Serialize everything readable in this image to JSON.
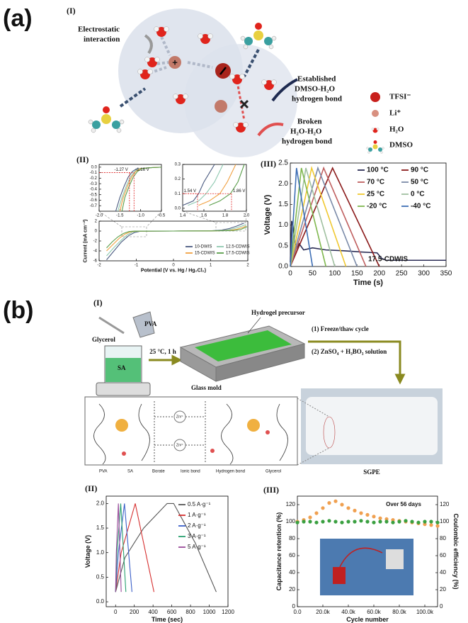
{
  "figure": {
    "panel_a": {
      "label": "(a)",
      "sub_I": "(I)",
      "sub_II": "(II)",
      "sub_III": "(III)",
      "electrostatic": [
        "Electrostatic",
        "interaction"
      ],
      "established": [
        "Established",
        "DMSO-H₂O",
        "hydrogen bond"
      ],
      "broken": [
        "Broken",
        "H₂O-H₂O",
        "hydrogen bond"
      ],
      "legend": [
        "TFSI⁻",
        "Li⁺",
        "H₂O",
        "DMSO"
      ]
    },
    "panel_b": {
      "label": "(b)",
      "sub_I": "(I)",
      "sub_II": "(II)",
      "sub_III": "(III)",
      "glycerol": "Glycerol",
      "pva": "PVA",
      "sa": "SA",
      "condition": "25 °C, 1 h",
      "precursor": "Hydrogel precursor",
      "mold": "Glass mold",
      "steps": [
        "(1) Freeze/thaw cycle",
        "(2) ZnSO₄ + H₃BO₃ solution"
      ],
      "sgpe": "SGPE",
      "zn": [
        "Zn²⁺",
        "Zn²⁺"
      ],
      "scheme_legend": [
        "PVA",
        "SA",
        "Borate",
        "Ionic bond",
        "Hydrogen bond",
        "Glycerol"
      ]
    }
  },
  "chart_data": [
    {
      "type": "line",
      "xlim": [
        -2,
        2
      ],
      "ylim": [
        -6,
        2
      ],
      "xticks": [
        -2,
        -1,
        0,
        1,
        2
      ],
      "yticks": [
        -6,
        -4,
        -2,
        0,
        2
      ],
      "x_label": "Potential (V vs. Hg / Hg₂Cl₂)",
      "y_label": "Current (mA cm⁻²)",
      "series": [
        {
          "name": "10-DWIS",
          "color": "#4a5a80",
          "x": [
            -1.8,
            -1.6,
            -1.4,
            -1.2,
            -1.05,
            -0.9,
            0,
            1.0,
            1.3,
            1.5,
            1.7,
            1.9
          ],
          "values": [
            -5.8,
            -4.0,
            -2.2,
            -0.9,
            -0.3,
            -0.05,
            0,
            0.05,
            0.2,
            0.5,
            1.0,
            1.6
          ]
        },
        {
          "name": "12.5-CDWIS",
          "color": "#8ec9b0",
          "x": [
            -1.8,
            -1.6,
            -1.4,
            -1.25,
            -1.1,
            -0.95,
            0,
            1.0,
            1.4,
            1.6,
            1.8,
            1.95
          ],
          "values": [
            -5.0,
            -3.3,
            -1.8,
            -0.8,
            -0.2,
            -0.03,
            0,
            0.04,
            0.15,
            0.45,
            0.9,
            1.3
          ]
        },
        {
          "name": "15-CDWIS",
          "color": "#f0a040",
          "x": [
            -1.8,
            -1.6,
            -1.45,
            -1.3,
            -1.15,
            -1.0,
            0,
            1.0,
            1.5,
            1.7,
            1.85,
            1.95
          ],
          "values": [
            -4.0,
            -2.5,
            -1.4,
            -0.6,
            -0.15,
            -0.02,
            0,
            0.03,
            0.12,
            0.35,
            0.7,
            1.0
          ]
        },
        {
          "name": "17.5-CDWIS",
          "color": "#5a9e4a",
          "x": [
            -1.8,
            -1.65,
            -1.5,
            -1.35,
            -1.2,
            -1.05,
            0,
            1.0,
            1.6,
            1.8,
            1.9,
            1.98
          ],
          "values": [
            -3.4,
            -2.2,
            -1.2,
            -0.5,
            -0.1,
            -0.01,
            0,
            0.02,
            0.1,
            0.3,
            0.6,
            0.9
          ]
        }
      ],
      "legend": true
    },
    {
      "type": "line",
      "xlim": [
        -2,
        -0.5
      ],
      "ylim": [
        -0.8,
        0.05
      ],
      "xticks": [
        {
          "value": -2,
          "label": "-2.0"
        },
        -1.5,
        {
          "value": -1,
          "label": "-1.0"
        },
        -0.5
      ],
      "yticks": [
        {
          "value": 0,
          "label": "0.0"
        },
        -0.1,
        -0.2,
        -0.3,
        -0.4,
        -0.5,
        -0.6,
        -0.7
      ],
      "series": [
        {
          "color": "#4a5a80",
          "x": [
            -1.6,
            -1.5,
            -1.4,
            -1.3,
            -1.2,
            -1.1,
            -0.8,
            -0.5
          ],
          "values": [
            -0.8,
            -0.55,
            -0.35,
            -0.18,
            -0.08,
            -0.03,
            -0.01,
            0
          ]
        },
        {
          "color": "#8ec9b0",
          "x": [
            -1.55,
            -1.45,
            -1.35,
            -1.25,
            -1.15,
            -1.05,
            -0.8,
            -0.5
          ],
          "values": [
            -0.8,
            -0.55,
            -0.35,
            -0.18,
            -0.08,
            -0.03,
            -0.01,
            0
          ]
        },
        {
          "color": "#f0a040",
          "x": [
            -1.5,
            -1.42,
            -1.32,
            -1.22,
            -1.12,
            -1.02,
            -0.8,
            -0.5
          ],
          "values": [
            -0.8,
            -0.55,
            -0.35,
            -0.18,
            -0.08,
            -0.03,
            -0.01,
            0
          ]
        },
        {
          "color": "#5a9e4a",
          "x": [
            -1.45,
            -1.38,
            -1.28,
            -1.18,
            -1.08,
            -0.98,
            -0.8,
            -0.5
          ],
          "values": [
            -0.8,
            -0.55,
            -0.35,
            -0.18,
            -0.08,
            -0.03,
            -0.01,
            0
          ]
        }
      ],
      "annotations": [
        {
          "text": "-1.27 V",
          "x": -1.27,
          "y": -0.1
        },
        {
          "text": "-1.16 V",
          "x": -1.16,
          "y": -0.1
        }
      ]
    },
    {
      "type": "line",
      "xlim": [
        1.4,
        2
      ],
      "ylim": [
        -0.02,
        0.3
      ],
      "xticks": [
        1.4,
        1.6,
        1.8,
        {
          "value": 2,
          "label": "2.0"
        }
      ],
      "yticks": [
        {
          "value": 0,
          "label": "0.0"
        },
        0.1,
        0.2,
        0.3
      ],
      "series": [
        {
          "color": "#4a5a80",
          "x": [
            1.4,
            1.5,
            1.55,
            1.6,
            1.7
          ],
          "values": [
            0.02,
            0.05,
            0.1,
            0.18,
            0.3
          ]
        },
        {
          "color": "#8ec9b0",
          "x": [
            1.45,
            1.55,
            1.62,
            1.7,
            1.78
          ],
          "values": [
            0.02,
            0.05,
            0.1,
            0.18,
            0.3
          ]
        },
        {
          "color": "#f0a040",
          "x": [
            1.55,
            1.65,
            1.75,
            1.82,
            1.9
          ],
          "values": [
            0.02,
            0.05,
            0.1,
            0.18,
            0.3
          ]
        },
        {
          "color": "#5a9e4a",
          "x": [
            1.65,
            1.75,
            1.85,
            1.92,
            1.98
          ],
          "values": [
            0.02,
            0.05,
            0.1,
            0.18,
            0.3
          ]
        }
      ],
      "annotations": [
        {
          "text": "1.54 V",
          "x": 1.54,
          "y": 0.1
        },
        {
          "text": "1.86 V",
          "x": 1.86,
          "y": 0.1
        }
      ]
    },
    {
      "type": "line",
      "xlim": [
        0,
        350
      ],
      "ylim": [
        0,
        2.5
      ],
      "xticks": [
        0,
        50,
        100,
        150,
        200,
        250,
        300,
        350
      ],
      "yticks": [
        {
          "value": 0,
          "label": "0.0"
        },
        0.5,
        {
          "value": 1,
          "label": "1.0"
        },
        1.5,
        {
          "value": 2,
          "label": "2.0"
        },
        2.5
      ],
      "x_label": "Time (s)",
      "y_label": "Voltage (V)",
      "series": [
        {
          "name": "100 °C",
          "color": "#2b2d55",
          "x": [
            0,
            3,
            6,
            10,
            15,
            20,
            30,
            50,
            80,
            120,
            160,
            195,
            205,
            215,
            350
          ],
          "values": [
            0.1,
            1.1,
            1.0,
            0.6,
            0.45,
            0.55,
            0.4,
            0.45,
            0.4,
            0.38,
            0.35,
            0.33,
            0.2,
            0.15,
            0.15
          ]
        },
        {
          "name": "90 °C",
          "color": "#8b1a1a",
          "x": [
            0,
            95,
            200
          ],
          "values": [
            0,
            2.38,
            0
          ]
        },
        {
          "name": "70 °C",
          "color": "#c06060",
          "x": [
            0,
            75,
            170
          ],
          "values": [
            0,
            2.38,
            0
          ]
        },
        {
          "name": "50 °C",
          "color": "#7a8aa8",
          "x": [
            0,
            62,
            150
          ],
          "values": [
            0,
            2.38,
            0
          ]
        },
        {
          "name": "25 °C",
          "color": "#f0c830",
          "x": [
            0,
            48,
            125
          ],
          "values": [
            0,
            2.38,
            0
          ]
        },
        {
          "name": "0 °C",
          "color": "#a0c0a0",
          "x": [
            0,
            35,
            100
          ],
          "values": [
            0,
            2.38,
            0
          ]
        },
        {
          "name": "-20 °C",
          "color": "#80b850",
          "x": [
            0,
            25,
            80
          ],
          "values": [
            0,
            2.38,
            0
          ]
        },
        {
          "name": "-40 °C",
          "color": "#3f6fb5",
          "x": [
            0,
            14,
            50
          ],
          "values": [
            0,
            2.38,
            0
          ]
        }
      ],
      "legend": true,
      "annotations": [
        {
          "text": "17.5-CDWIS",
          "color": "#d42020"
        }
      ]
    },
    {
      "type": "line",
      "xlim": [
        -100,
        1200
      ],
      "ylim": [
        -0.1,
        2.15
      ],
      "xticks": [
        0,
        200,
        400,
        600,
        800,
        1000,
        1200
      ],
      "yticks": [
        {
          "value": 0,
          "label": "0.0"
        },
        0.5,
        {
          "value": 1,
          "label": "1.0"
        },
        1.5,
        {
          "value": 2,
          "label": "2.0"
        }
      ],
      "x_label": "Time (sec)",
      "y_label": "Voltage (V)",
      "series": [
        {
          "name": "0.5 A·g⁻¹",
          "color": "#555555",
          "x": [
            0,
            100,
            300,
            550,
            620,
            850,
            1075
          ],
          "values": [
            0.2,
            0.9,
            1.5,
            2.0,
            2.0,
            1.2,
            0.2
          ]
        },
        {
          "name": "1 A·g⁻¹",
          "color": "#d63030",
          "x": [
            0,
            60,
            210,
            410
          ],
          "values": [
            0.2,
            1.0,
            2.0,
            0.2
          ]
        },
        {
          "name": "2 A·g⁻¹",
          "color": "#3a5fc8",
          "x": [
            0,
            30,
            95,
            175
          ],
          "values": [
            0.2,
            1.0,
            2.0,
            0.2
          ]
        },
        {
          "name": "3 A·g⁻¹",
          "color": "#2aa070",
          "x": [
            0,
            15,
            55,
            110
          ],
          "values": [
            0.2,
            1.0,
            2.0,
            0.2
          ]
        },
        {
          "name": "5 A·g⁻¹",
          "color": "#9a4a9a",
          "x": [
            0,
            8,
            30,
            60
          ],
          "values": [
            0.2,
            1.0,
            2.0,
            0.2
          ]
        }
      ],
      "legend": true
    },
    {
      "type": "scatter",
      "xlim": [
        0,
        110000
      ],
      "ylim": [
        0,
        130
      ],
      "y2lim": [
        0,
        130
      ],
      "xticks": [
        {
          "value": 0,
          "label": "0.0"
        },
        {
          "value": 20000,
          "label": "20.0k"
        },
        {
          "value": 40000,
          "label": "40.0k"
        },
        {
          "value": 60000,
          "label": "60.0k"
        },
        {
          "value": 80000,
          "label": "80.0k"
        },
        {
          "value": 100000,
          "label": "100.0k"
        }
      ],
      "yticks": [
        0,
        20,
        40,
        60,
        80,
        100,
        120
      ],
      "y2ticks": [
        0,
        20,
        40,
        60,
        80,
        100,
        120
      ],
      "x_label": "Cycle number",
      "y_label": "Capacitance retention (%)",
      "y2_label": "Coulombic efficiency (%)",
      "x": [
        0,
        5000,
        10000,
        15000,
        20000,
        25000,
        30000,
        35000,
        40000,
        45000,
        50000,
        55000,
        60000,
        65000,
        70000,
        75000,
        80000,
        85000,
        90000,
        95000,
        100000,
        105000,
        110000
      ],
      "series": [
        {
          "color": "#f0a050",
          "values": [
            100,
            102,
            105,
            110,
            116,
            122,
            124,
            120,
            116,
            113,
            110,
            108,
            106,
            104,
            103,
            102,
            101,
            100,
            99,
            98,
            97,
            96,
            95
          ]
        },
        {
          "color": "#3aa040",
          "axis": "y2",
          "values": [
            99,
            100,
            100,
            99,
            100,
            101,
            100,
            99,
            100,
            100,
            101,
            100,
            99,
            100,
            100,
            99,
            100,
            101,
            100,
            99,
            100,
            100,
            99
          ]
        }
      ],
      "annotations": [
        {
          "text": "Over 56 days"
        }
      ]
    }
  ]
}
